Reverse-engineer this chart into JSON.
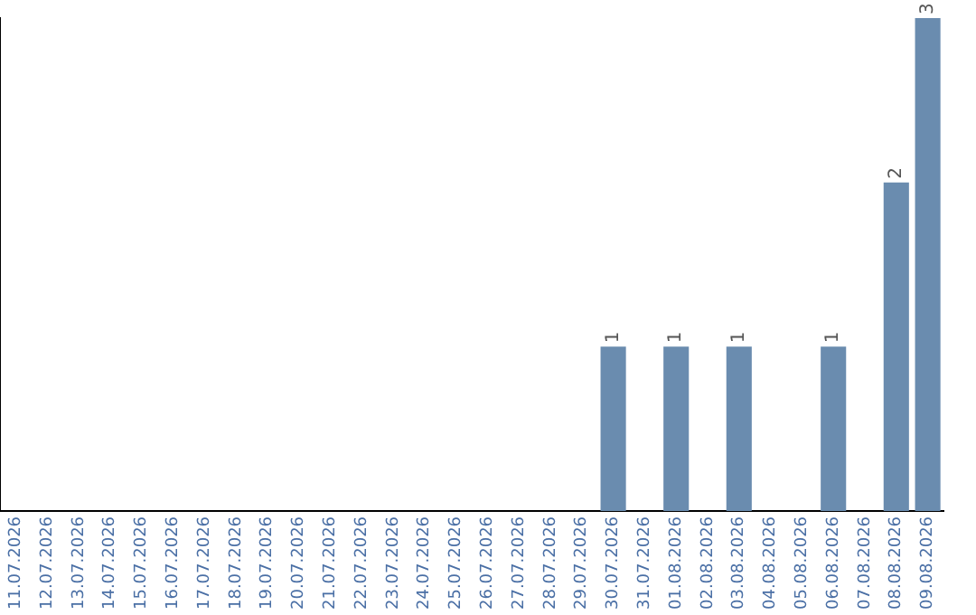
{
  "chart_data": {
    "type": "bar",
    "categories": [
      "11.07.2026",
      "12.07.2026",
      "13.07.2026",
      "14.07.2026",
      "15.07.2026",
      "16.07.2026",
      "17.07.2026",
      "18.07.2026",
      "19.07.2026",
      "20.07.2026",
      "21.07.2026",
      "22.07.2026",
      "23.07.2026",
      "24.07.2026",
      "25.07.2026",
      "26.07.2026",
      "27.07.2026",
      "28.07.2026",
      "29.07.2026",
      "30.07.2026",
      "31.07.2026",
      "01.08.2026",
      "02.08.2026",
      "03.08.2026",
      "04.08.2026",
      "05.08.2026",
      "06.08.2026",
      "07.08.2026",
      "08.08.2026",
      "09.08.2026"
    ],
    "values": [
      null,
      null,
      null,
      null,
      null,
      null,
      null,
      null,
      null,
      null,
      null,
      null,
      null,
      null,
      null,
      null,
      null,
      null,
      null,
      1,
      null,
      1,
      null,
      1,
      null,
      null,
      1,
      null,
      2,
      3
    ],
    "value_labels": [
      null,
      null,
      null,
      null,
      null,
      null,
      null,
      null,
      null,
      null,
      null,
      null,
      null,
      null,
      null,
      null,
      null,
      null,
      null,
      "1",
      null,
      "1",
      null,
      "1",
      null,
      null,
      "1",
      null,
      "2",
      "3"
    ],
    "color": "#6a8caf",
    "ylim": [
      0,
      3
    ],
    "tick_labels": "x",
    "grid": false,
    "legend": false
  }
}
